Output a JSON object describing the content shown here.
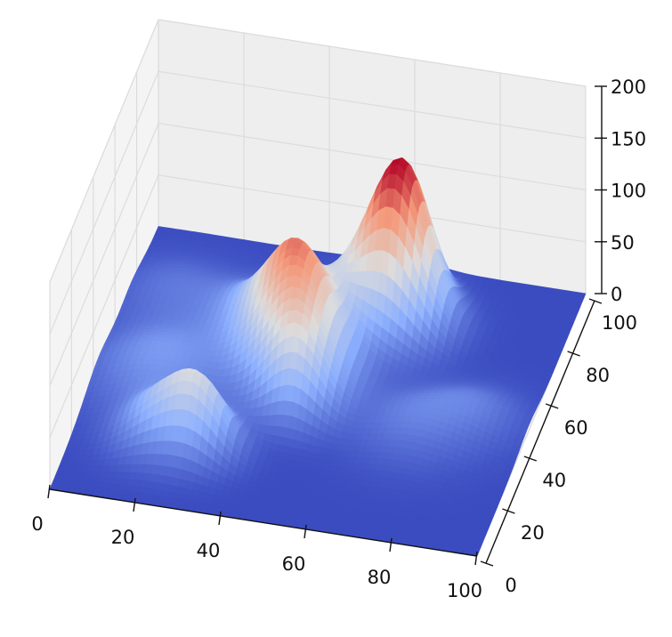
{
  "chart_data": {
    "type": "surface3d",
    "colormap": "coolwarm",
    "colormap_colors": [
      "#3b4cc0",
      "#8db0fe",
      "#dddddd",
      "#f49a7b",
      "#b40426"
    ],
    "x_ticks": [
      "0",
      "20",
      "40",
      "60",
      "80",
      "100"
    ],
    "y_ticks": [
      "0",
      "20",
      "40",
      "60",
      "80",
      "100"
    ],
    "z_ticks": [
      "0",
      "50",
      "100",
      "150",
      "200"
    ],
    "xlim": [
      0,
      100
    ],
    "ylim": [
      0,
      100
    ],
    "zlim": [
      0,
      200
    ],
    "grid": true,
    "peaks": [
      {
        "x": 62,
        "y": 78,
        "height": 115,
        "width": 7
      },
      {
        "x": 62,
        "y": 88,
        "height": 60,
        "width": 5
      },
      {
        "x": 55,
        "y": 75,
        "height": 40,
        "width": 10
      },
      {
        "x": 45,
        "y": 52,
        "height": 95,
        "width": 8
      },
      {
        "x": 48,
        "y": 40,
        "height": 45,
        "width": 6
      },
      {
        "x": 40,
        "y": 62,
        "height": 50,
        "width": 8
      },
      {
        "x": 33,
        "y": 70,
        "height": 30,
        "width": 9
      },
      {
        "x": 30,
        "y": 22,
        "height": 55,
        "width": 6
      },
      {
        "x": 20,
        "y": 22,
        "height": 40,
        "width": 7
      },
      {
        "x": 15,
        "y": 45,
        "height": 30,
        "width": 12
      },
      {
        "x": 75,
        "y": 40,
        "height": 20,
        "width": 10
      },
      {
        "x": 88,
        "y": 48,
        "height": 15,
        "width": 8
      },
      {
        "x": 10,
        "y": 75,
        "height": 15,
        "width": 10
      }
    ]
  }
}
